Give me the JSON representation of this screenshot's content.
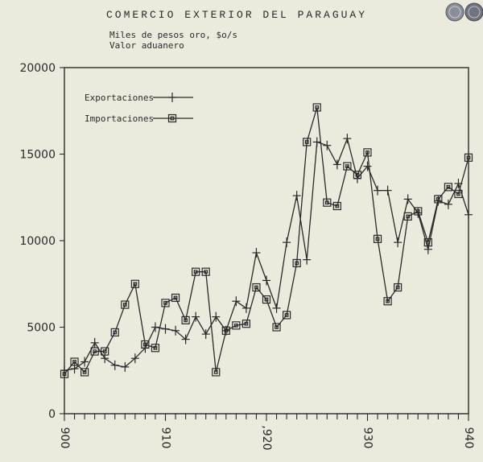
{
  "chart_data": {
    "type": "line",
    "title": "COMERCIO EXTERIOR DEL PARAGUAY",
    "subtitle_lines": [
      "Miles de pesos oro, $o/s",
      "Valor aduanero"
    ],
    "xlabel": "",
    "ylabel": "",
    "xlim": [
      1900,
      1940
    ],
    "ylim": [
      0,
      20000
    ],
    "x_ticks": [
      1900,
      1901,
      1902,
      1903,
      1904,
      1905,
      1906,
      1907,
      1908,
      1909,
      1910,
      1911,
      1912,
      1913,
      1914,
      1915,
      1916,
      1917,
      1918,
      1919,
      1920,
      1921,
      1922,
      1923,
      1924,
      1925,
      1926,
      1927,
      1928,
      1929,
      1930,
      1931,
      1932,
      1933,
      1934,
      1935,
      1936,
      1937,
      1938,
      1939,
      1940
    ],
    "x_tick_labels": [
      {
        "x": 1900,
        "label": "900"
      },
      {
        "x": 1910,
        "label": "910"
      },
      {
        "x": 1920,
        "label": ",920"
      },
      {
        "x": 1930,
        "label": "930"
      },
      {
        "x": 1940,
        "label": "940"
      }
    ],
    "y_ticks": [
      0,
      5000,
      10000,
      15000,
      20000
    ],
    "y_tick_labels": [
      "0",
      "5000",
      "10000",
      "15000",
      "20000"
    ],
    "grid": false,
    "legend_position": "top-left",
    "x": [
      1900,
      1901,
      1902,
      1903,
      1904,
      1905,
      1906,
      1907,
      1908,
      1909,
      1910,
      1911,
      1912,
      1913,
      1914,
      1915,
      1916,
      1917,
      1918,
      1919,
      1920,
      1921,
      1922,
      1923,
      1924,
      1925,
      1926,
      1927,
      1928,
      1929,
      1930,
      1931,
      1932,
      1933,
      1934,
      1935,
      1936,
      1937,
      1938,
      1939,
      1940
    ],
    "series": [
      {
        "name": "Exportaciones",
        "marker": "plus",
        "values": [
          2500,
          2600,
          3000,
          4100,
          3200,
          2800,
          2700,
          3200,
          3800,
          5000,
          4900,
          4800,
          4300,
          5600,
          4600,
          5600,
          4800,
          6500,
          6100,
          9300,
          7700,
          6100,
          9900,
          12600,
          8900,
          15700,
          15500,
          14400,
          15900,
          13600,
          14300,
          12900,
          12900,
          9900,
          12400,
          11600,
          9500,
          12300,
          12100,
          13300,
          11500
        ]
      },
      {
        "name": "Importaciones",
        "marker": "square",
        "values": [
          2300,
          3000,
          2400,
          3600,
          3600,
          4700,
          6300,
          7500,
          4000,
          3800,
          6400,
          6700,
          5400,
          8200,
          8200,
          2400,
          4800,
          5100,
          5200,
          7300,
          6600,
          5000,
          5700,
          8700,
          15700,
          17700,
          12200,
          12000,
          14300,
          13800,
          15100,
          10100,
          6500,
          7300,
          11400,
          11700,
          9900,
          12400,
          13100,
          12700,
          14800
        ]
      }
    ]
  }
}
